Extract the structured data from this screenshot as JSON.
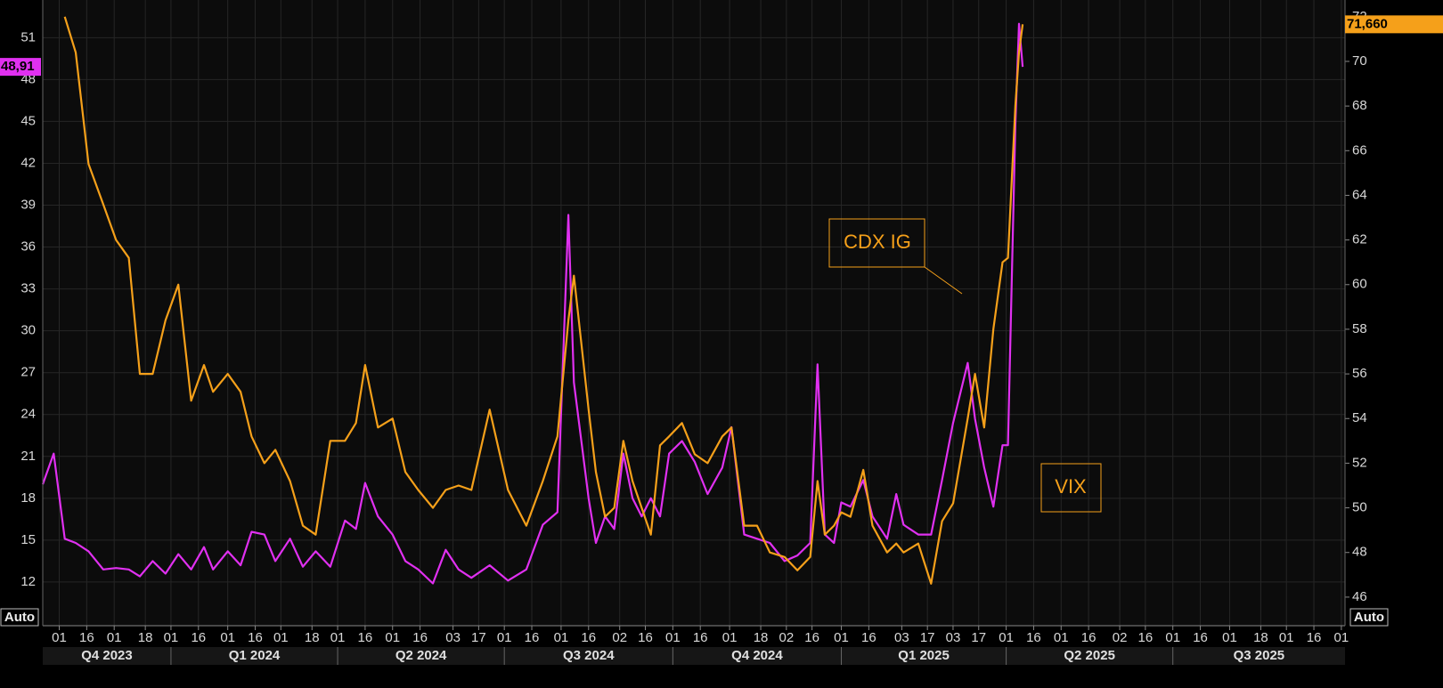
{
  "chart_data": {
    "type": "line",
    "x": [
      "2023-10-23",
      "2023-10-29",
      "2023-11-04",
      "2023-11-10",
      "2023-11-17",
      "2023-11-25",
      "2023-12-02",
      "2023-12-09",
      "2023-12-15",
      "2023-12-22",
      "2023-12-29",
      "2024-01-05",
      "2024-01-12",
      "2024-01-19",
      "2024-01-24",
      "2024-02-01",
      "2024-02-08",
      "2024-02-14",
      "2024-02-21",
      "2024-02-27",
      "2024-03-06",
      "2024-03-13",
      "2024-03-20",
      "2024-03-28",
      "2024-04-05",
      "2024-04-11",
      "2024-04-16",
      "2024-04-23",
      "2024-05-01",
      "2024-05-08",
      "2024-05-15",
      "2024-05-23",
      "2024-05-30",
      "2024-06-06",
      "2024-06-13",
      "2024-06-23",
      "2024-07-03",
      "2024-07-13",
      "2024-07-22",
      "2024-07-30",
      "2024-08-05",
      "2024-08-08",
      "2024-08-16",
      "2024-08-20",
      "2024-08-25",
      "2024-08-30",
      "2024-09-04",
      "2024-09-09",
      "2024-09-14",
      "2024-09-19",
      "2024-09-24",
      "2024-09-29",
      "2024-10-06",
      "2024-10-13",
      "2024-10-20",
      "2024-10-28",
      "2024-11-02",
      "2024-11-09",
      "2024-11-16",
      "2024-11-23",
      "2024-12-01",
      "2024-12-08",
      "2024-12-15",
      "2024-12-19",
      "2024-12-23",
      "2024-12-28",
      "2025-01-01",
      "2025-01-06",
      "2025-01-13",
      "2025-01-18",
      "2025-01-26",
      "2025-01-31",
      "2025-02-04",
      "2025-02-12",
      "2025-02-19",
      "2025-02-25",
      "2025-03-03",
      "2025-03-11",
      "2025-03-15",
      "2025-03-20",
      "2025-03-25",
      "2025-03-30",
      "2025-04-02",
      "2025-04-06",
      "2025-04-08",
      "2025-04-10"
    ],
    "series": [
      {
        "name": "VIX",
        "color": "#e030f0",
        "axis": "y",
        "last_value_label": "48,91",
        "values": [
          19.0,
          21.2,
          15.1,
          14.8,
          14.2,
          12.9,
          13.0,
          12.9,
          12.4,
          13.5,
          12.6,
          14.0,
          12.9,
          14.5,
          12.9,
          14.2,
          13.2,
          15.6,
          15.4,
          13.5,
          15.1,
          13.1,
          14.2,
          13.1,
          16.4,
          15.8,
          19.1,
          16.7,
          15.4,
          13.5,
          12.9,
          11.9,
          14.3,
          12.9,
          12.3,
          13.2,
          12.1,
          12.9,
          16.1,
          17.0,
          38.3,
          26.3,
          18.0,
          14.8,
          16.7,
          15.8,
          21.2,
          18.0,
          16.7,
          18.0,
          16.7,
          21.2,
          22.1,
          20.6,
          18.3,
          20.2,
          23.1,
          15.4,
          15.1,
          14.8,
          13.5,
          13.9,
          14.8,
          27.6,
          15.4,
          14.8,
          17.7,
          17.4,
          19.3,
          16.7,
          15.1,
          18.3,
          16.1,
          15.4,
          15.4,
          19.3,
          23.4,
          27.7,
          23.7,
          20.2,
          17.4,
          21.8,
          21.8,
          44.8,
          52.0,
          48.91
        ]
      },
      {
        "name": "CDX IG",
        "color": "#f5a01a",
        "axis": "y2",
        "last_value_label": "71,660",
        "values": [
          null,
          null,
          72.0,
          70.4,
          65.4,
          63.6,
          62.0,
          61.2,
          56.0,
          56.0,
          58.4,
          60.0,
          54.8,
          56.4,
          55.2,
          56.0,
          55.2,
          53.2,
          52.0,
          52.6,
          51.2,
          49.2,
          48.8,
          53.0,
          53.0,
          53.8,
          56.4,
          53.6,
          54.0,
          51.6,
          50.8,
          50.0,
          50.8,
          51.0,
          50.8,
          54.4,
          50.8,
          49.2,
          51.2,
          53.2,
          58.4,
          60.4,
          54.4,
          51.6,
          49.6,
          50.0,
          53.0,
          51.2,
          50.0,
          48.8,
          52.8,
          53.2,
          53.8,
          52.4,
          52.0,
          53.2,
          53.6,
          49.2,
          49.2,
          48.0,
          47.8,
          47.2,
          47.8,
          51.2,
          48.8,
          49.2,
          49.8,
          49.6,
          51.7,
          49.2,
          48.0,
          48.4,
          48.0,
          48.4,
          46.6,
          49.4,
          50.2,
          54.0,
          56.0,
          53.6,
          58.0,
          61.0,
          61.2,
          68.0,
          70.4,
          71.66
        ]
      }
    ],
    "xlim": [
      "2023-10-23",
      "2025-10-03"
    ],
    "xticks": [
      {
        "value": "2023-11-01",
        "label": "01"
      },
      {
        "value": "2023-11-16",
        "label": "16"
      },
      {
        "value": "2023-12-01",
        "label": "01"
      },
      {
        "value": "2023-12-18",
        "label": "18"
      },
      {
        "value": "2024-01-01",
        "label": "01"
      },
      {
        "value": "2024-01-16",
        "label": "16"
      },
      {
        "value": "2024-02-01",
        "label": "01"
      },
      {
        "value": "2024-02-16",
        "label": "16"
      },
      {
        "value": "2024-03-01",
        "label": "01"
      },
      {
        "value": "2024-03-18",
        "label": "18"
      },
      {
        "value": "2024-04-01",
        "label": "01"
      },
      {
        "value": "2024-04-16",
        "label": "16"
      },
      {
        "value": "2024-05-01",
        "label": "01"
      },
      {
        "value": "2024-05-16",
        "label": "16"
      },
      {
        "value": "2024-06-03",
        "label": "03"
      },
      {
        "value": "2024-06-17",
        "label": "17"
      },
      {
        "value": "2024-07-01",
        "label": "01"
      },
      {
        "value": "2024-07-16",
        "label": "16"
      },
      {
        "value": "2024-08-01",
        "label": "01"
      },
      {
        "value": "2024-08-16",
        "label": "16"
      },
      {
        "value": "2024-09-02",
        "label": "02"
      },
      {
        "value": "2024-09-16",
        "label": "16"
      },
      {
        "value": "2024-10-01",
        "label": "01"
      },
      {
        "value": "2024-10-16",
        "label": "16"
      },
      {
        "value": "2024-11-01",
        "label": "01"
      },
      {
        "value": "2024-11-18",
        "label": "18"
      },
      {
        "value": "2024-12-02",
        "label": "02"
      },
      {
        "value": "2024-12-16",
        "label": "16"
      },
      {
        "value": "2025-01-01",
        "label": "01"
      },
      {
        "value": "2025-01-16",
        "label": "16"
      },
      {
        "value": "2025-02-03",
        "label": "03"
      },
      {
        "value": "2025-02-17",
        "label": "17"
      },
      {
        "value": "2025-03-03",
        "label": "03"
      },
      {
        "value": "2025-03-17",
        "label": "17"
      },
      {
        "value": "2025-04-01",
        "label": "01"
      },
      {
        "value": "2025-04-16",
        "label": "16"
      },
      {
        "value": "2025-05-01",
        "label": "01"
      },
      {
        "value": "2025-05-16",
        "label": "16"
      },
      {
        "value": "2025-06-02",
        "label": "02"
      },
      {
        "value": "2025-06-16",
        "label": "16"
      },
      {
        "value": "2025-07-01",
        "label": "01"
      },
      {
        "value": "2025-07-16",
        "label": "16"
      },
      {
        "value": "2025-08-01",
        "label": "01"
      },
      {
        "value": "2025-08-18",
        "label": "18"
      },
      {
        "value": "2025-09-01",
        "label": "01"
      },
      {
        "value": "2025-09-16",
        "label": "16"
      },
      {
        "value": "2025-10-01",
        "label": "01"
      }
    ],
    "quarters": [
      {
        "value": "2023-10-01",
        "label": "Q4 2023"
      },
      {
        "value": "2024-01-01",
        "label": "Q1 2024"
      },
      {
        "value": "2024-04-01",
        "label": "Q2 2024"
      },
      {
        "value": "2024-07-01",
        "label": "Q3 2024"
      },
      {
        "value": "2024-10-01",
        "label": "Q4 2024"
      },
      {
        "value": "2025-01-01",
        "label": "Q1 2025"
      },
      {
        "value": "2025-04-01",
        "label": "Q2 2025"
      },
      {
        "value": "2025-07-01",
        "label": "Q3 2025"
      }
    ],
    "ylim": [
      8.87,
      53.7
    ],
    "yticks": [
      12,
      15,
      18,
      21,
      24,
      27,
      30,
      33,
      36,
      39,
      42,
      45,
      48,
      51
    ],
    "y2lim": [
      44.72,
      72.75
    ],
    "y2ticks": [
      46,
      48,
      50,
      52,
      54,
      56,
      58,
      60,
      62,
      64,
      66,
      68,
      70,
      72
    ],
    "grid": true,
    "left_scale_mode": "Auto",
    "right_scale_mode": "Auto"
  }
}
